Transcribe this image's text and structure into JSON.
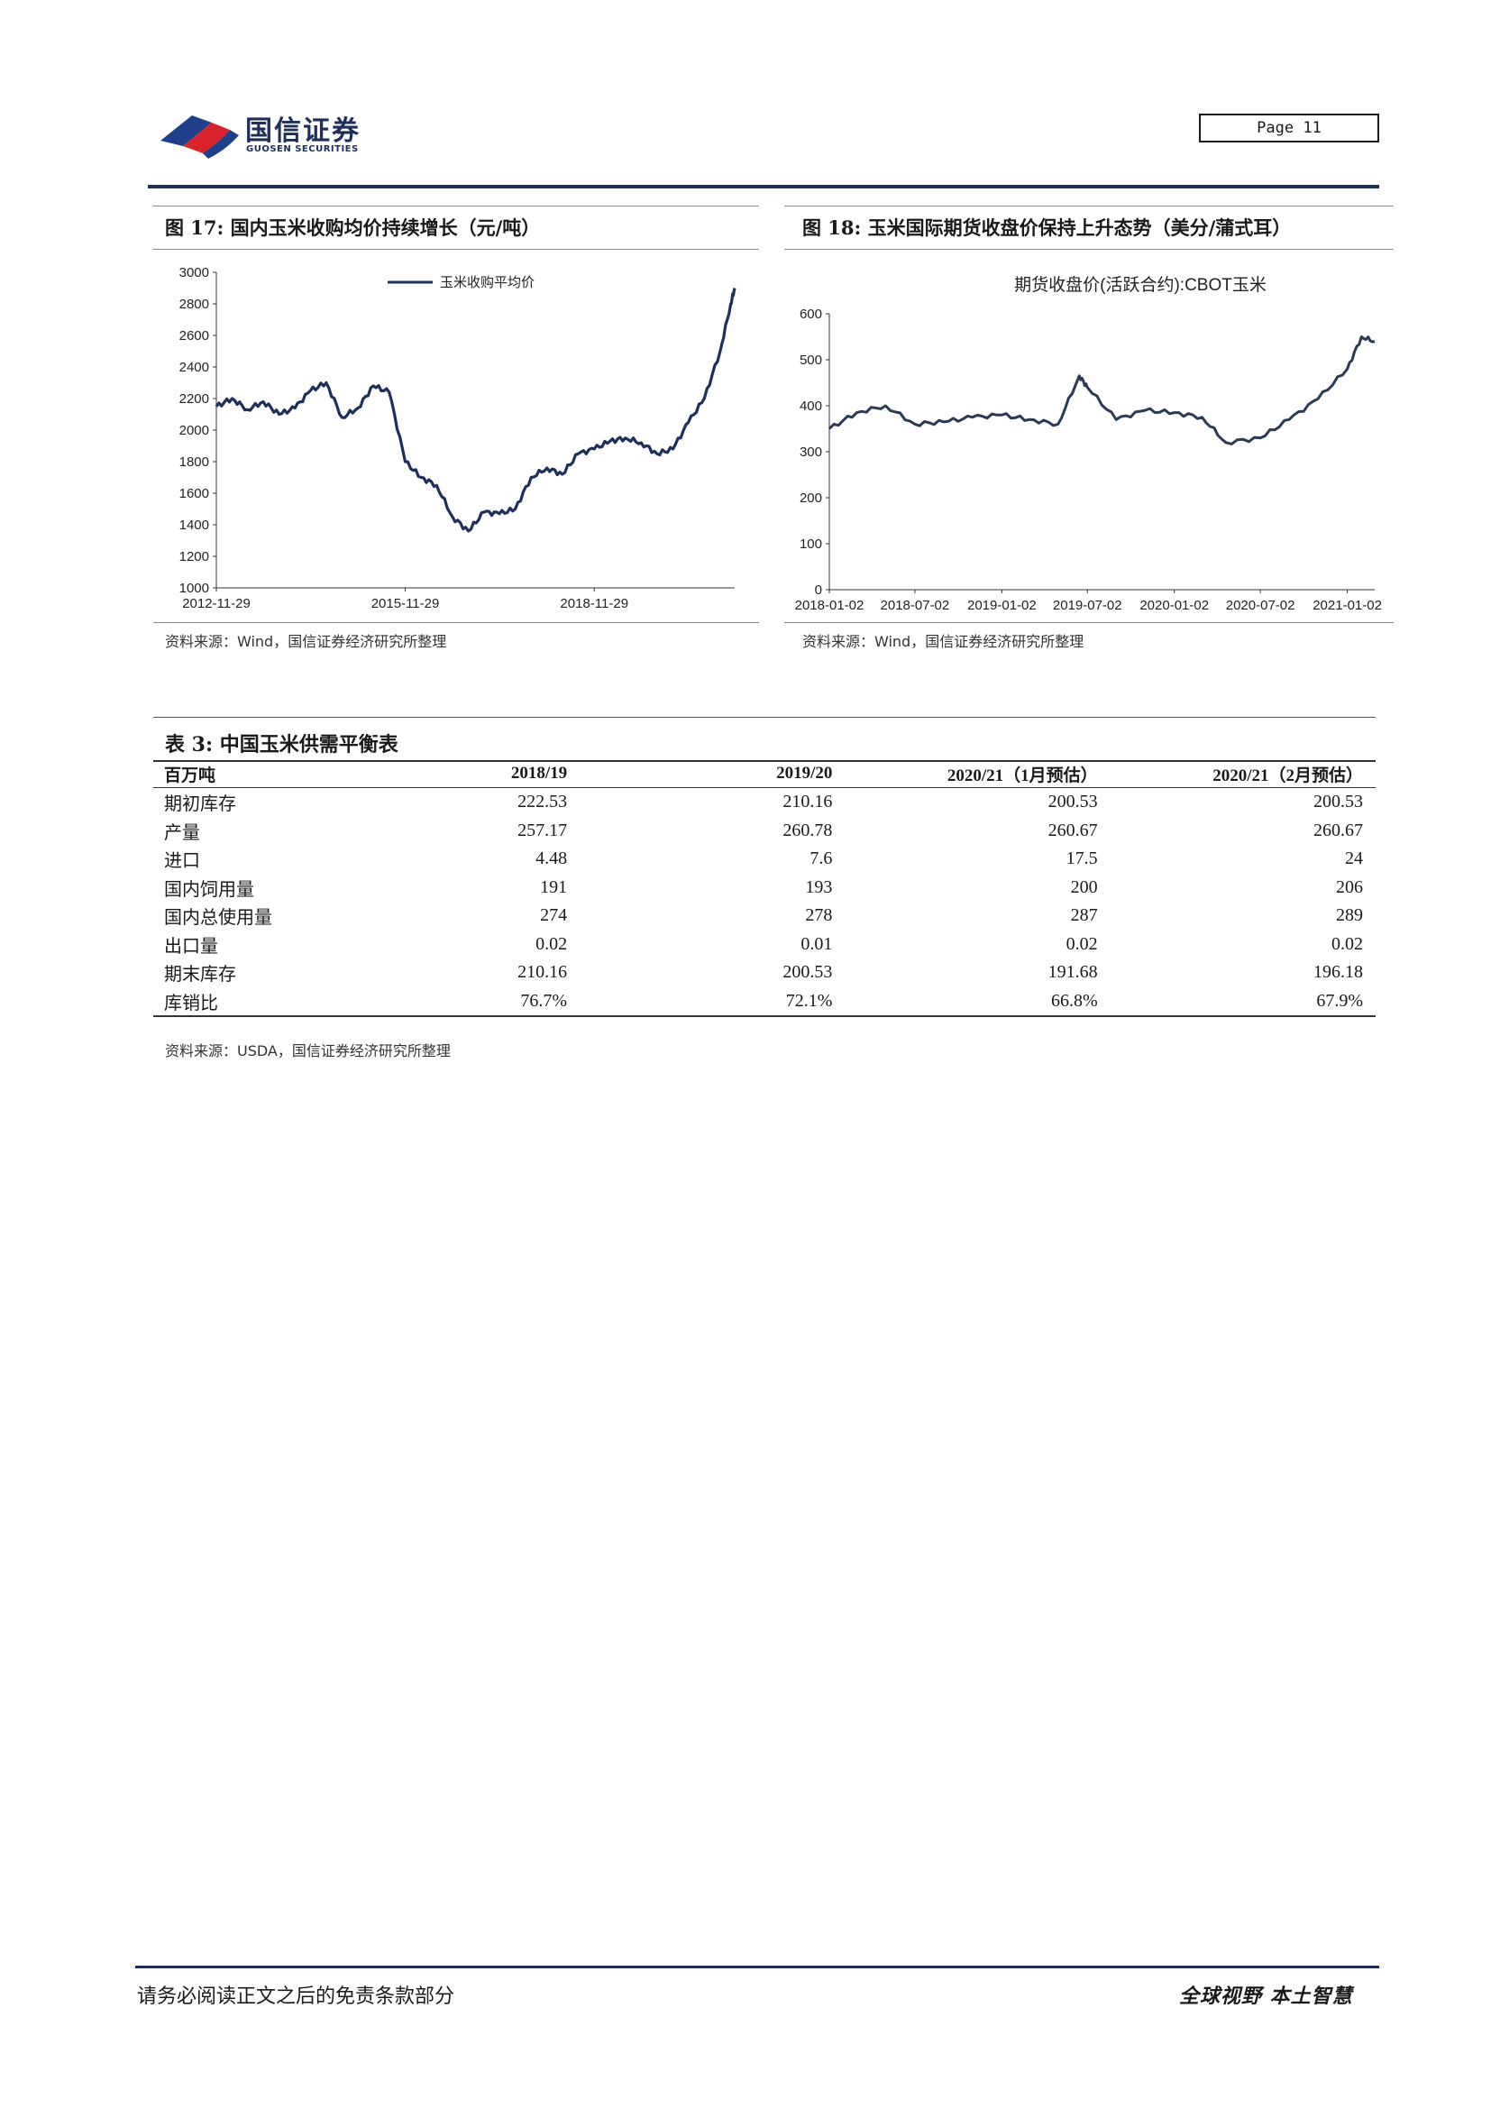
{
  "header": {
    "logo_cn": "国信证券",
    "logo_en": "GUOSEN SECURITIES",
    "page_label": "Page  11"
  },
  "figures": [
    {
      "title": "图 17:  国内玉米收购均价持续增长（元/吨）",
      "source": "资料来源：Wind，国信证券经济研究所整理",
      "legend": "玉米收购平均价"
    },
    {
      "title": "图 18:  玉米国际期货收盘价保持上升态势（美分/蒲式耳）",
      "source": "资料来源：Wind，国信证券经济研究所整理",
      "legend": "期货收盘价(活跃合约):CBOT玉米"
    }
  ],
  "chart_data": [
    {
      "type": "line",
      "title": "",
      "xlabel": "",
      "ylabel": "",
      "ylim": [
        1000,
        3000
      ],
      "y_ticks": [
        "3000",
        "2800",
        "2600",
        "2400",
        "2200",
        "2000",
        "1800",
        "1600",
        "1400",
        "1200",
        "1000"
      ],
      "x_ticks": [
        "2012-11-29",
        "2015-11-29",
        "2018-11-29"
      ],
      "grid": false,
      "legend_position": "top-center",
      "color": "#1f2f5c",
      "series": [
        {
          "name": "玉米收购平均价",
          "x": [
            "2012-11-29",
            "2013-02-28",
            "2013-05-28",
            "2013-08-28",
            "2013-11-28",
            "2014-02-28",
            "2014-05-28",
            "2014-08-28",
            "2014-11-28",
            "2015-02-28",
            "2015-05-28",
            "2015-08-28",
            "2015-11-29",
            "2016-02-29",
            "2016-05-29",
            "2016-08-29",
            "2016-11-29",
            "2017-02-28",
            "2017-05-28",
            "2017-08-28",
            "2017-11-28",
            "2018-02-28",
            "2018-05-28",
            "2018-08-28",
            "2018-11-29",
            "2019-02-28",
            "2019-05-28",
            "2019-08-28",
            "2019-11-28",
            "2020-02-28",
            "2020-05-28",
            "2020-08-28",
            "2020-11-28",
            "2021-01-28",
            "2021-02-20"
          ],
          "y": [
            2150,
            2200,
            2130,
            2180,
            2100,
            2140,
            2250,
            2300,
            2080,
            2140,
            2280,
            2240,
            1800,
            1700,
            1650,
            1450,
            1360,
            1480,
            1470,
            1500,
            1700,
            1760,
            1720,
            1850,
            1880,
            1930,
            1950,
            1920,
            1850,
            1880,
            2050,
            2200,
            2500,
            2800,
            2900
          ]
        }
      ]
    },
    {
      "type": "line",
      "title": "期货收盘价(活跃合约):CBOT玉米",
      "xlabel": "",
      "ylabel": "",
      "ylim": [
        0,
        600
      ],
      "y_ticks": [
        "600",
        "500",
        "400",
        "300",
        "200",
        "100",
        "0"
      ],
      "x_ticks": [
        "2018-01-02",
        "2018-07-02",
        "2019-01-02",
        "2019-07-02",
        "2020-01-02",
        "2020-07-02",
        "2021-01-02"
      ],
      "grid": false,
      "legend_position": "top-center",
      "color": "#2b3a55",
      "series": [
        {
          "name": "期货收盘价(活跃合约):CBOT玉米",
          "x": [
            "2018-01-02",
            "2018-03-01",
            "2018-05-01",
            "2018-07-02",
            "2018-09-01",
            "2018-11-01",
            "2019-01-02",
            "2019-03-01",
            "2019-05-01",
            "2019-06-15",
            "2019-07-02",
            "2019-09-01",
            "2019-11-01",
            "2020-01-02",
            "2020-03-01",
            "2020-04-20",
            "2020-07-02",
            "2020-09-01",
            "2020-11-01",
            "2021-01-02",
            "2021-02-01",
            "2021-03-01"
          ],
          "y": [
            350,
            385,
            400,
            360,
            365,
            375,
            380,
            370,
            360,
            465,
            440,
            370,
            390,
            385,
            375,
            320,
            330,
            370,
            415,
            480,
            550,
            540
          ]
        }
      ]
    }
  ],
  "table": {
    "title": "表 3:  中国玉米供需平衡表",
    "headers": [
      "百万吨",
      "2018/19",
      "2019/20",
      "2020/21（1月预估）",
      "2020/21（2月预估）"
    ],
    "rows": [
      [
        "期初库存",
        "222.53",
        "210.16",
        "200.53",
        "200.53"
      ],
      [
        "产量",
        "257.17",
        "260.78",
        "260.67",
        "260.67"
      ],
      [
        "进口",
        "4.48",
        "7.6",
        "17.5",
        "24"
      ],
      [
        "国内饲用量",
        "191",
        "193",
        "200",
        "206"
      ],
      [
        "国内总使用量",
        "274",
        "278",
        "287",
        "289"
      ],
      [
        "出口量",
        "0.02",
        "0.01",
        "0.02",
        "0.02"
      ],
      [
        "期末库存",
        "210.16",
        "200.53",
        "191.68",
        "196.18"
      ],
      [
        "库销比",
        "76.7%",
        "72.1%",
        "66.8%",
        "67.9%"
      ]
    ],
    "source": "资料来源：USDA，国信证券经济研究所整理"
  },
  "footer": {
    "disclaimer": "请务必阅读正文之后的免责条款部分",
    "slogan": "全球视野   本土智慧"
  }
}
